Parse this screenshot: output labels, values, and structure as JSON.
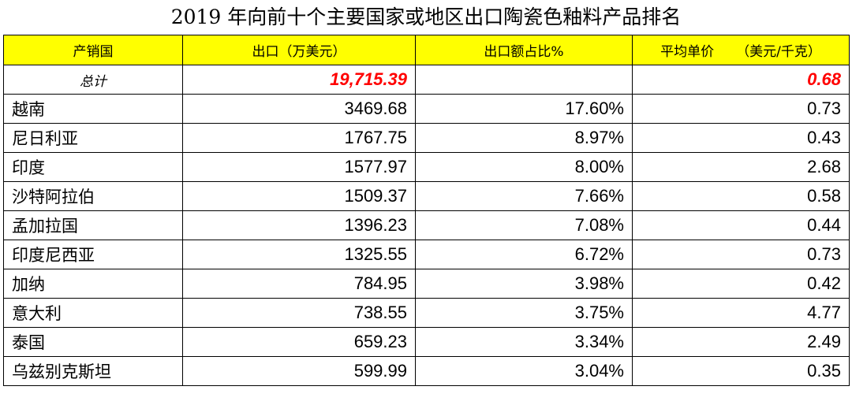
{
  "title": "2019 年向前十个主要国家或地区出口陶瓷色釉料产品排名",
  "colors": {
    "header_bg": "#ffff00",
    "highlight_red": "#ff0000"
  },
  "table": {
    "headers": {
      "country": "产销国",
      "export_value": "出口（万美元）",
      "share": "出口额占比%",
      "avg_price": "平均单价",
      "avg_price_unit": "（美元/千克）"
    },
    "total": {
      "label": "总计",
      "export_value": "19,715.39",
      "share": "",
      "avg_price": "0.68"
    },
    "rows": [
      {
        "country": "越南",
        "export_value": "3469.68",
        "share": "17.60%",
        "avg_price": "0.73"
      },
      {
        "country": "尼日利亚",
        "export_value": "1767.75",
        "share": "8.97%",
        "avg_price": "0.43"
      },
      {
        "country": "印度",
        "export_value": "1577.97",
        "share": "8.00%",
        "avg_price": "2.68"
      },
      {
        "country": "沙特阿拉伯",
        "export_value": "1509.37",
        "share": "7.66%",
        "avg_price": "0.58"
      },
      {
        "country": "孟加拉国",
        "export_value": "1396.23",
        "share": "7.08%",
        "avg_price": "0.44"
      },
      {
        "country": "印度尼西亚",
        "export_value": "1325.55",
        "share": "6.72%",
        "avg_price": "0.73"
      },
      {
        "country": "加纳",
        "export_value": "784.95",
        "share": "3.98%",
        "avg_price": "0.42"
      },
      {
        "country": "意大利",
        "export_value": "738.55",
        "share": "3.75%",
        "avg_price": "4.77"
      },
      {
        "country": "泰国",
        "export_value": "659.23",
        "share": "3.34%",
        "avg_price": "2.49"
      },
      {
        "country": "乌兹别克斯坦",
        "export_value": "599.99",
        "share": "3.04%",
        "avg_price": "0.35"
      }
    ]
  }
}
